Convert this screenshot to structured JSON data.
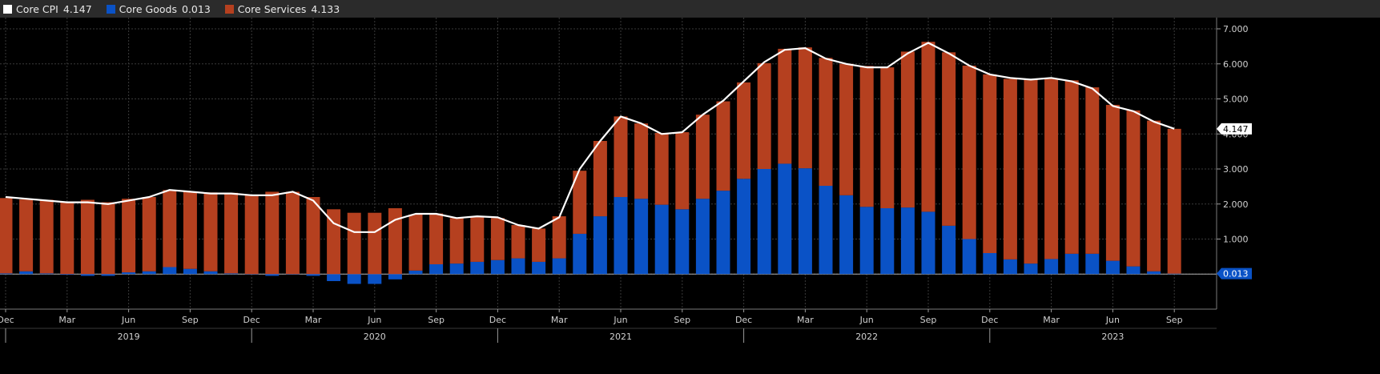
{
  "legend": [
    {
      "name": "Core CPI",
      "value": "4.147",
      "color": "#ffffff"
    },
    {
      "name": "Core Goods",
      "value": "0.013",
      "color": "#0a52c6"
    },
    {
      "name": "Core Services",
      "value": "4.133",
      "color": "#b5401f"
    }
  ],
  "chart_data": {
    "type": "bar",
    "stacked": true,
    "x_start": "2018-12",
    "x_end": "2023-09",
    "ylim": [
      -1.0,
      7.0
    ],
    "yticks": [
      "1.000",
      "2.000",
      "3.000",
      "4.000",
      "5.000",
      "6.000",
      "7.000"
    ],
    "x_month_labels": [
      "Dec",
      "Mar",
      "Jun",
      "Sep",
      "Dec",
      "Mar",
      "Jun",
      "Sep",
      "Dec",
      "Mar",
      "Jun",
      "Sep",
      "Dec",
      "Mar",
      "Jun",
      "Sep",
      "Dec",
      "Mar",
      "Jun",
      "Sep"
    ],
    "x_year_labels": [
      "2019",
      "2020",
      "2021",
      "2022",
      "2023"
    ],
    "grid": true,
    "series": [
      {
        "name": "Core Goods",
        "type": "bar",
        "color": "#0a52c6",
        "values": [
          0.02,
          0.08,
          0.02,
          -0.02,
          -0.05,
          -0.05,
          0.05,
          0.08,
          0.2,
          0.15,
          0.08,
          0.02,
          0.0,
          -0.05,
          0.0,
          -0.05,
          -0.2,
          -0.28,
          -0.28,
          -0.15,
          0.1,
          0.28,
          0.3,
          0.35,
          0.4,
          0.45,
          0.35,
          0.45,
          1.15,
          1.65,
          2.2,
          2.15,
          1.98,
          1.85,
          2.15,
          2.38,
          2.72,
          3.0,
          3.15,
          3.02,
          2.52,
          2.25,
          1.92,
          1.88,
          1.9,
          1.78,
          1.38,
          1.0,
          0.6,
          0.42,
          0.3,
          0.43,
          0.58,
          0.58,
          0.38,
          0.22,
          0.08,
          0.013
        ]
      },
      {
        "name": "Core Services",
        "type": "bar",
        "color": "#b5401f",
        "values": [
          2.15,
          2.05,
          2.1,
          2.05,
          2.12,
          2.05,
          2.1,
          2.12,
          2.2,
          2.2,
          2.25,
          2.3,
          2.25,
          2.35,
          2.35,
          2.2,
          1.85,
          1.75,
          1.75,
          1.88,
          1.6,
          1.45,
          1.3,
          1.28,
          1.2,
          0.95,
          0.95,
          1.2,
          1.8,
          2.15,
          2.3,
          2.15,
          2.05,
          2.2,
          2.4,
          2.55,
          2.75,
          3.02,
          3.28,
          3.45,
          3.65,
          3.75,
          4.02,
          4.02,
          4.45,
          4.85,
          4.95,
          4.95,
          5.1,
          5.15,
          5.25,
          5.15,
          4.95,
          4.75,
          4.45,
          4.45,
          4.3,
          4.133
        ]
      },
      {
        "name": "Core CPI",
        "type": "line",
        "color": "#ffffff",
        "values": [
          2.2,
          2.15,
          2.1,
          2.05,
          2.05,
          2.0,
          2.1,
          2.2,
          2.4,
          2.35,
          2.3,
          2.3,
          2.25,
          2.25,
          2.35,
          2.1,
          1.45,
          1.2,
          1.2,
          1.55,
          1.72,
          1.72,
          1.6,
          1.65,
          1.62,
          1.4,
          1.3,
          1.62,
          3.0,
          3.8,
          4.5,
          4.3,
          4.0,
          4.05,
          4.55,
          4.95,
          5.5,
          6.05,
          6.4,
          6.45,
          6.15,
          6.0,
          5.9,
          5.9,
          6.3,
          6.6,
          6.3,
          5.95,
          5.7,
          5.6,
          5.55,
          5.6,
          5.5,
          5.3,
          4.8,
          4.65,
          4.35,
          4.147
        ]
      }
    ],
    "last_value_labels": [
      {
        "series": "Core CPI",
        "text": "4.147"
      },
      {
        "series": "Core Goods",
        "text": "0.013"
      }
    ]
  }
}
